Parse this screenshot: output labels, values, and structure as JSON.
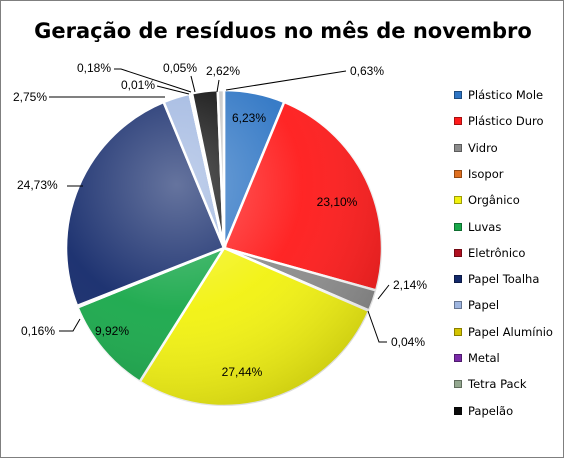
{
  "chart_data": {
    "type": "pie",
    "title": "Geração de resíduos no mês de novembro",
    "legend_position": "right",
    "slices": [
      {
        "name": "Plástico Mole",
        "value": 6.23,
        "label": "6,23%",
        "color": "#2e75c4"
      },
      {
        "name": "Plástico Duro",
        "value": 23.1,
        "label": "23,10%",
        "color": "#ff1a1a"
      },
      {
        "name": "Vidro",
        "value": 2.14,
        "label": "2,14%",
        "color": "#8c8c8c"
      },
      {
        "name": "Isopor",
        "value": 0.04,
        "label": "0,04%",
        "color": "#e07020"
      },
      {
        "name": "Orgânico",
        "value": 27.44,
        "label": "27,44%",
        "color": "#f2f20f"
      },
      {
        "name": "Luvas",
        "value": 9.92,
        "label": "9,92%",
        "color": "#18a84a"
      },
      {
        "name": "Eletrônico",
        "value": 0.16,
        "label": "0,16%",
        "color": "#b01020"
      },
      {
        "name": "Papel Toalha",
        "value": 24.73,
        "label": "24,73%",
        "color": "#13296a"
      },
      {
        "name": "Papel",
        "value": 2.75,
        "label": "2,75%",
        "color": "#9fb6e0"
      },
      {
        "name": "Papel Alumínio",
        "value": 0.01,
        "label": "0,01%",
        "color": "#d4c400"
      },
      {
        "name": "Metal",
        "value": 0.18,
        "label": "0,18%",
        "color": "#7a2aa8"
      },
      {
        "name": "Tetra Pack",
        "value": 0.05,
        "label": "0,05%",
        "color": "#94a890"
      },
      {
        "name": "Papelão",
        "value": 2.62,
        "label": "2,62%",
        "color": "#0a0a0a"
      },
      {
        "name": "",
        "value": 0.63,
        "label": "0,63%",
        "color": "#c8c8c8"
      }
    ]
  }
}
